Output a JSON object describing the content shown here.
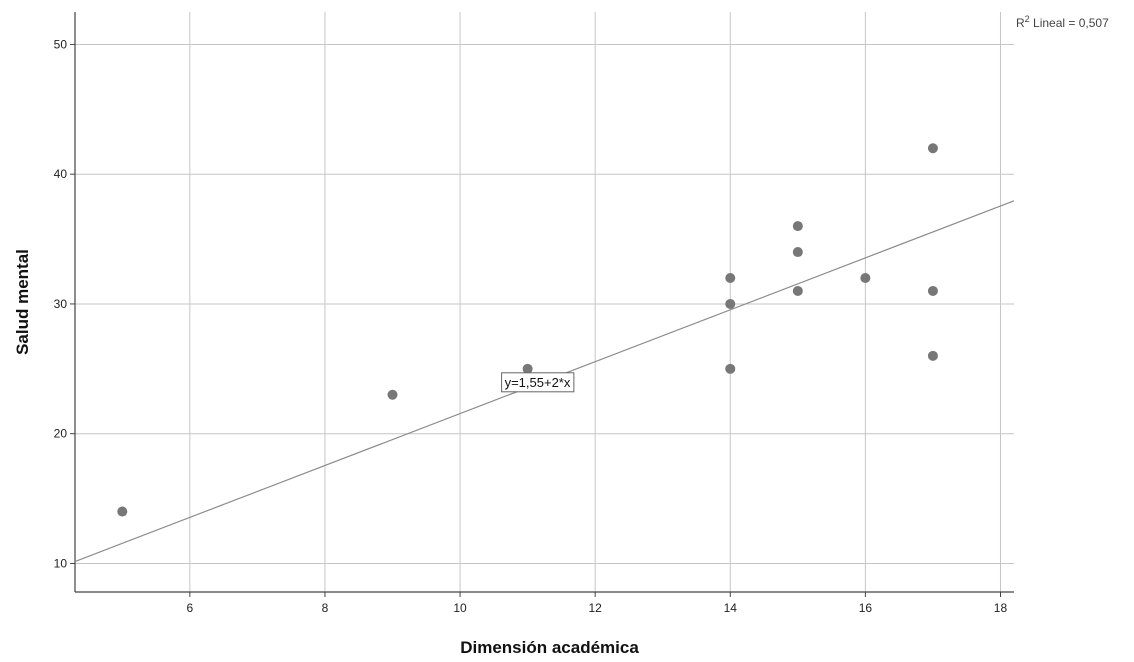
{
  "chart_data": {
    "type": "scatter",
    "xlabel": "Dimensión académica",
    "ylabel": "Salud mental",
    "xlim": [
      4.3,
      18.2
    ],
    "ylim": [
      7.8,
      52.5
    ],
    "x_ticks": [
      6,
      8,
      10,
      12,
      14,
      16,
      18
    ],
    "y_ticks": [
      10,
      20,
      30,
      40,
      50
    ],
    "grid": true,
    "colors": {
      "points": "#777777",
      "grid": "#c6c6c6",
      "fit_line": "#8c8c8c",
      "axis": "#444444"
    },
    "points": [
      {
        "x": 5,
        "y": 14
      },
      {
        "x": 9,
        "y": 23
      },
      {
        "x": 11,
        "y": 25
      },
      {
        "x": 14,
        "y": 25
      },
      {
        "x": 14,
        "y": 30
      },
      {
        "x": 14,
        "y": 32
      },
      {
        "x": 15,
        "y": 31
      },
      {
        "x": 15,
        "y": 34
      },
      {
        "x": 15,
        "y": 36
      },
      {
        "x": 16,
        "y": 32
      },
      {
        "x": 17,
        "y": 26
      },
      {
        "x": 17,
        "y": 31
      },
      {
        "x": 17,
        "y": 42
      }
    ],
    "fit": {
      "intercept": 1.55,
      "slope": 2,
      "label": "y=1,55+2*x"
    },
    "r2": {
      "prefix": "R",
      "superscript": "2",
      "suffix": " Lineal = 0,507"
    }
  }
}
